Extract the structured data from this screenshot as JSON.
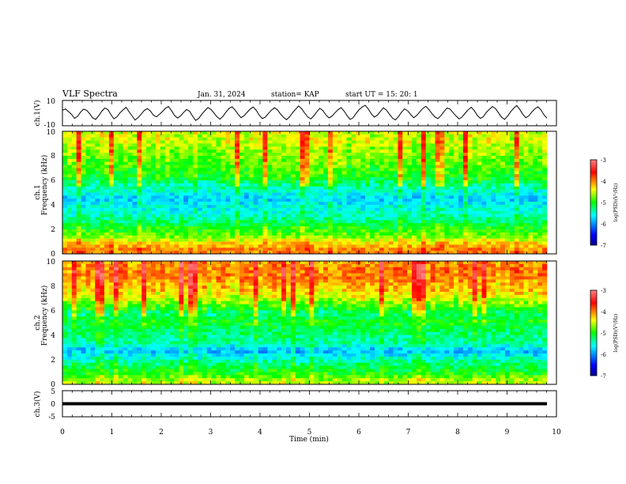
{
  "header": {
    "title": "VLF Spectra",
    "date": "Jan. 31, 2024",
    "station": "station= KAP",
    "start": "start UT =  15: 20: 1"
  },
  "chart_data": [
    {
      "type": "line",
      "title": "",
      "ylabel": "ch.1(V)",
      "ylim": [
        -10,
        10
      ],
      "yticks": [
        10,
        -10
      ],
      "xlim": [
        0,
        10
      ],
      "samples": [
        2.1,
        3.4,
        1.2,
        -1.0,
        -4.2,
        -2.5,
        0.8,
        3.1,
        2.2,
        -0.5,
        -3.8,
        -5.0,
        -2.0,
        1.5,
        4.0,
        2.8,
        -1.2,
        -4.5,
        -3.0,
        0.2,
        2.5,
        4.6,
        1.0,
        -2.2,
        -5.5,
        -3.5,
        -0.8,
        2.0,
        3.5,
        1.8,
        -1.5,
        -3.0,
        -1.0,
        1.2,
        3.8,
        5.2,
        2.0,
        -1.8,
        -4.0,
        -2.2,
        0.5,
        2.8,
        1.5,
        -2.5,
        -5.8,
        -4.2,
        -1.0,
        1.8,
        4.4,
        3.0,
        0.2,
        -2.8,
        -4.8,
        -2.5,
        0.8,
        3.6,
        5.0,
        2.4,
        -0.8,
        -3.6,
        -2.0,
        0.6,
        3.2,
        4.8,
        2.2,
        -1.6,
        -4.4,
        -3.2,
        -0.4,
        2.4,
        4.2,
        2.6,
        -0.6,
        -3.4,
        -5.2,
        -3.0,
        0.4,
        3.0,
        5.6,
        3.4,
        0.0,
        -3.0,
        -4.6,
        -2.2,
        1.0,
        3.8,
        2.0,
        -1.4,
        -3.8,
        -2.4,
        0.2,
        2.6,
        4.4,
        1.6,
        -2.0,
        -5.0,
        -3.6,
        -0.2,
        2.8,
        4.8,
        6.2,
        3.2,
        -0.6,
        -3.2,
        -1.6,
        1.4,
        4.2,
        2.4,
        -1.0,
        -4.0,
        -5.4,
        -2.6,
        0.8,
        3.4,
        1.8,
        -1.2,
        -3.6,
        -1.8,
        1.0,
        3.6,
        5.4,
        2.8,
        -0.4,
        -3.0,
        -4.4,
        -2.0,
        1.2,
        4.0,
        3.2,
        0.4,
        -2.4,
        -4.6,
        -3.0,
        0.0,
        2.6,
        4.6,
        2.0,
        -1.8,
        -4.2,
        -2.8,
        0.6,
        3.0,
        5.2,
        3.6,
        0.2,
        -3.2,
        -5.0,
        -2.4,
        1.0,
        3.8,
        6.0,
        3.0,
        -0.8,
        -3.6,
        -2.2,
        0.8,
        3.4,
        5.0,
        2.6,
        -1.4,
        -4.0
      ],
      "note_values_read_off": "y values in volts for trace across 0-10 min"
    },
    {
      "type": "heatmap",
      "title": "",
      "ylabel": "ch.1\nFrequency (kHz)",
      "ylim": [
        0,
        10
      ],
      "yticks": [
        0,
        2,
        4,
        6,
        8,
        10
      ],
      "xlim": [
        0,
        10
      ],
      "colorbar": {
        "label": "log(PSD)(V²/Hz)",
        "range": [
          -7,
          -3
        ],
        "ticks": [
          -3,
          -4,
          -5,
          -6,
          -7
        ]
      },
      "spectrum_profile": [
        {
          "f": 0.3,
          "level": -4.0
        },
        {
          "f": 0.9,
          "level": -4.3
        },
        {
          "f": 1.5,
          "level": -4.8
        },
        {
          "f": 2.1,
          "level": -5.0
        },
        {
          "f": 2.7,
          "level": -5.3
        },
        {
          "f": 3.3,
          "level": -5.5
        },
        {
          "f": 3.9,
          "level": -5.6
        },
        {
          "f": 4.5,
          "level": -5.8
        },
        {
          "f": 5.1,
          "level": -5.5
        },
        {
          "f": 5.7,
          "level": -5.3
        },
        {
          "f": 6.3,
          "level": -5.0
        },
        {
          "f": 6.9,
          "level": -4.9
        },
        {
          "f": 7.5,
          "level": -4.8
        },
        {
          "f": 8.1,
          "level": -4.7
        },
        {
          "f": 8.7,
          "level": -4.6
        },
        {
          "f": 9.3,
          "level": -4.5
        },
        {
          "f": 9.9,
          "level": -4.5
        }
      ]
    },
    {
      "type": "heatmap",
      "title": "",
      "ylabel": "ch.2\nFrequency (kHz)",
      "ylim": [
        0,
        10
      ],
      "yticks": [
        0,
        2,
        4,
        6,
        8,
        10
      ],
      "xlim": [
        0,
        10
      ],
      "colorbar": {
        "label": "log(PSD)(V²/Hz)",
        "range": [
          -7,
          -3
        ],
        "ticks": [
          -3,
          -4,
          -5,
          -6,
          -7
        ]
      },
      "spectrum_profile": [
        {
          "f": 0.3,
          "level": -4.6
        },
        {
          "f": 0.9,
          "level": -5.0
        },
        {
          "f": 1.5,
          "level": -5.2
        },
        {
          "f": 2.1,
          "level": -5.5
        },
        {
          "f": 2.7,
          "level": -5.9
        },
        {
          "f": 3.3,
          "level": -5.4
        },
        {
          "f": 3.9,
          "level": -5.3
        },
        {
          "f": 4.5,
          "level": -5.2
        },
        {
          "f": 5.1,
          "level": -5.0
        },
        {
          "f": 5.7,
          "level": -5.3
        },
        {
          "f": 6.3,
          "level": -4.9
        },
        {
          "f": 6.9,
          "level": -4.6
        },
        {
          "f": 7.5,
          "level": -4.3
        },
        {
          "f": 8.1,
          "level": -4.2
        },
        {
          "f": 8.7,
          "level": -4.0
        },
        {
          "f": 9.3,
          "level": -4.0
        },
        {
          "f": 9.9,
          "level": -4.1
        }
      ]
    },
    {
      "type": "line",
      "title": "",
      "ylabel": "ch.3(V)",
      "ylim": [
        -5,
        5
      ],
      "yticks": [
        5,
        0,
        -5
      ],
      "xlim": [
        0,
        10
      ],
      "xticks": [
        0,
        1,
        2,
        3,
        4,
        5,
        6,
        7,
        8,
        9,
        10
      ],
      "xlabel": "Time (min)",
      "band": {
        "low": -0.6,
        "high": 0.6
      }
    }
  ]
}
